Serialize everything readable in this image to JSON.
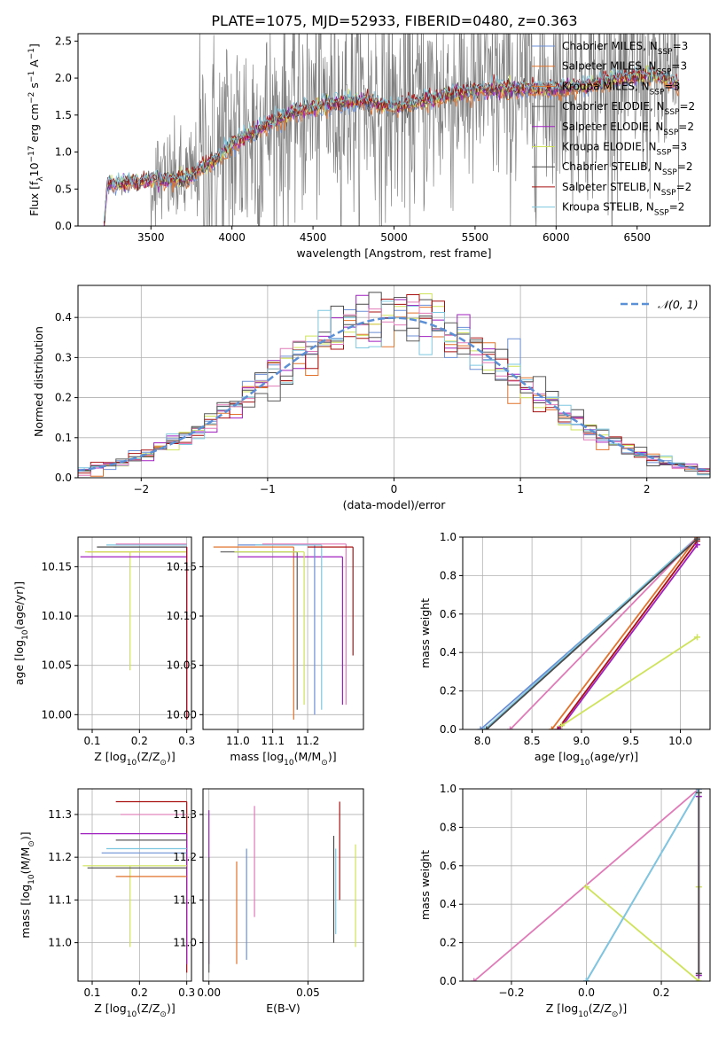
{
  "figure_title": "PLATE=1075, MJD=52933, FIBERID=0480, z=0.363",
  "colors": {
    "chabrier_miles": "#6b8fd6",
    "salpeter_miles": "#e2722b",
    "kroupa_miles": "#e2722b",
    "chabrier_elodie": "#5b5b5b",
    "salpeter_elodie": "#a01fbf",
    "kroupa_elodie": "#cfe35a",
    "chabrier_stelib": "#4a4a4a",
    "salpeter_stelib": "#a81010",
    "kroupa_stelib": "#7ec7e0",
    "pink": "#e07ab8",
    "data": "#808080",
    "gaussian": "#5b8fd6",
    "grid": "#b0b0b0"
  },
  "chart_data": [
    {
      "id": "spectrum",
      "type": "line",
      "xlabel": "wavelength [Angstrom, rest frame]",
      "ylabel": "Flux [f",
      "ylabel_sub": "λ",
      "ylabel_rest": "10",
      "ylabel_exp1": "−17",
      "ylabel_mid": " erg cm",
      "ylabel_exp2": "−2",
      "ylabel_mid2": " s",
      "ylabel_exp3": "−1",
      "ylabel_mid3": " A",
      "ylabel_exp4": "−1",
      "ylabel_end": "]",
      "xlim": [
        3050,
        6950
      ],
      "ylim": [
        0,
        2.6
      ],
      "xticks": [
        "3500",
        "4000",
        "4500",
        "5000",
        "5500",
        "6000",
        "6500"
      ],
      "xtick_values": [
        3500,
        4000,
        4500,
        5000,
        5500,
        6000,
        6500
      ],
      "yticks": [
        "0.0",
        "0.5",
        "1.0",
        "1.5",
        "2.0",
        "2.5"
      ],
      "ytick_values": [
        0,
        0.5,
        1.0,
        1.5,
        2.0,
        2.5
      ],
      "x_range": [
        3210,
        6760
      ],
      "model_anchor_x": [
        3210,
        3230,
        3500,
        3700,
        3900,
        4000,
        4200,
        4400,
        4600,
        4800,
        5000,
        5200,
        5400,
        5600,
        5800,
        6000,
        6200,
        6400,
        6600,
        6760
      ],
      "model_anchor_y": [
        0.0,
        0.55,
        0.62,
        0.62,
        0.9,
        1.1,
        1.35,
        1.55,
        1.65,
        1.7,
        1.6,
        1.7,
        1.8,
        1.85,
        1.85,
        1.85,
        1.9,
        2.0,
        2.05,
        1.9
      ],
      "legend": [
        {
          "label": "Chabrier MILES, N",
          "sub": "SSP",
          "rest": "=3",
          "color_key": "chabrier_miles"
        },
        {
          "label": "Salpeter MILES, N",
          "sub": "SSP",
          "rest": "=3",
          "color_key": "salpeter_miles"
        },
        {
          "label": "Kroupa MILES, N",
          "sub": "SSP",
          "rest": "=3",
          "color_key": "kroupa_miles"
        },
        {
          "label": "Chabrier ELODIE, N",
          "sub": "SSP",
          "rest": "=2",
          "color_key": "chabrier_elodie"
        },
        {
          "label": "Salpeter ELODIE, N",
          "sub": "SSP",
          "rest": "=2",
          "color_key": "salpeter_elodie"
        },
        {
          "label": "Kroupa ELODIE, N",
          "sub": "SSP",
          "rest": "=3",
          "color_key": "kroupa_elodie"
        },
        {
          "label": "Chabrier STELIB, N",
          "sub": "SSP",
          "rest": "=2",
          "color_key": "chabrier_stelib"
        },
        {
          "label": "Salpeter STELIB, N",
          "sub": "SSP",
          "rest": "=2",
          "color_key": "salpeter_stelib"
        },
        {
          "label": "Kroupa STELIB, N",
          "sub": "SSP",
          "rest": "=2",
          "color_key": "kroupa_stelib"
        }
      ]
    },
    {
      "id": "residuals",
      "type": "line",
      "xlabel": "(data-model)/error",
      "ylabel": "Normed distribution",
      "xlim": [
        -2.5,
        2.5
      ],
      "ylim": [
        0,
        0.48
      ],
      "xticks": [
        "−2",
        "−1",
        "0",
        "1",
        "2"
      ],
      "xtick_values": [
        -2,
        -1,
        0,
        1,
        2
      ],
      "yticks": [
        "0.0",
        "0.1",
        "0.2",
        "0.3",
        "0.4"
      ],
      "ytick_values": [
        0,
        0.1,
        0.2,
        0.3,
        0.4
      ],
      "bin_width": 0.1,
      "legend_label": "𝒩(0, 1)"
    },
    {
      "id": "age_vs_Z",
      "type": "line",
      "xlabel": "Z [log",
      "xlabel_sub": "10",
      "xlabel_rest": "(Z/Z",
      "xlabel_sub2": "⊙",
      "xlabel_end": ")]",
      "ylabel": "age  [log",
      "ylabel_sub": "10",
      "ylabel_rest": "(age/yr)]",
      "xlim": [
        0.07,
        0.31
      ],
      "ylim": [
        9.985,
        10.18
      ],
      "xticks": [
        "0.1",
        "0.2",
        "0.3"
      ],
      "xtick_values": [
        0.1,
        0.2,
        0.3
      ],
      "yticks": [
        "10.00",
        "10.05",
        "10.10",
        "10.15"
      ],
      "ytick_values": [
        10.0,
        10.05,
        10.1,
        10.15
      ],
      "segments": [
        {
          "color_key": "chabrier_miles",
          "x": 0.3,
          "y": 10.17,
          "xmin": 0.145,
          "xmax": 0.3,
          "ymin": 10.17,
          "ymax": 10.17
        },
        {
          "color_key": "salpeter_miles",
          "x": 0.3,
          "y": 10.165,
          "xmin": 0.09,
          "xmax": 0.3,
          "ymin": 10.165,
          "ymax": 10.165
        },
        {
          "color_key": "kroupa_elodie",
          "x": 0.18,
          "y": 10.165,
          "xmin": 0.085,
          "xmax": 0.3,
          "ymin": 10.045,
          "ymax": 10.165
        },
        {
          "color_key": "salpeter_elodie",
          "x": 0.3,
          "y": 10.16,
          "xmin": 0.075,
          "xmax": 0.3,
          "ymin": 9.995,
          "ymax": 10.17
        },
        {
          "color_key": "chabrier_stelib",
          "x": 0.3,
          "y": 10.17,
          "xmin": 0.11,
          "xmax": 0.3,
          "ymin": 10.17,
          "ymax": 10.17
        },
        {
          "color_key": "kroupa_stelib",
          "x": 0.3,
          "y": 10.172,
          "xmin": 0.13,
          "xmax": 0.3,
          "ymin": 10.172,
          "ymax": 10.172
        },
        {
          "color_key": "pink",
          "x": 0.3,
          "y": 10.173,
          "xmin": 0.15,
          "xmax": 0.3,
          "ymin": 10.173,
          "ymax": 10.173
        },
        {
          "color_key": "salpeter_stelib",
          "x": 0.3,
          "y": 10.17,
          "xmin": 0.3,
          "xmax": 0.3,
          "ymin": 9.995,
          "ymax": 10.17
        }
      ]
    },
    {
      "id": "age_vs_mass",
      "type": "line",
      "xlabel": "mass [log",
      "xlabel_sub": "10",
      "xlabel_rest": "(M/M",
      "xlabel_sub2": "⊙",
      "xlabel_end": ")]",
      "xlim": [
        10.9,
        11.36
      ],
      "ylim": [
        9.985,
        10.18
      ],
      "xticks": [
        "11.0",
        "11.1",
        "11.2"
      ],
      "xtick_values": [
        11.0,
        11.1,
        11.2
      ],
      "yticks": [
        "10.00",
        "10.05",
        "10.10",
        "10.15"
      ],
      "ytick_values": [
        10.0,
        10.05,
        10.1,
        10.15
      ],
      "segments": [
        {
          "color_key": "salpeter_miles",
          "x": 11.16,
          "y": 10.17,
          "xmin": 10.93,
          "xmax": 11.16,
          "ymin": 9.995,
          "ymax": 10.17
        },
        {
          "color_key": "chabrier_elodie",
          "x": 11.17,
          "y": 10.165,
          "xmin": 10.95,
          "xmax": 11.17,
          "ymin": 10.005,
          "ymax": 10.165
        },
        {
          "color_key": "salpeter_elodie",
          "x": 11.3,
          "y": 10.16,
          "xmin": 11.0,
          "xmax": 11.3,
          "ymin": 10.01,
          "ymax": 10.16
        },
        {
          "color_key": "kroupa_elodie",
          "x": 11.19,
          "y": 10.165,
          "xmin": 10.99,
          "xmax": 11.19,
          "ymin": 10.01,
          "ymax": 10.165
        },
        {
          "color_key": "chabrier_miles",
          "x": 11.22,
          "y": 10.172,
          "xmin": 11.0,
          "xmax": 11.22,
          "ymin": 10.0,
          "ymax": 10.172
        },
        {
          "color_key": "kroupa_stelib",
          "x": 11.24,
          "y": 10.172,
          "xmin": 11.05,
          "xmax": 11.24,
          "ymin": 10.005,
          "ymax": 10.172
        },
        {
          "color_key": "pink",
          "x": 11.31,
          "y": 10.173,
          "xmin": 11.07,
          "xmax": 11.31,
          "ymin": 10.01,
          "ymax": 10.173
        },
        {
          "color_key": "salpeter_stelib",
          "x": 11.33,
          "y": 10.17,
          "xmin": 11.2,
          "xmax": 11.33,
          "ymin": 10.06,
          "ymax": 10.17
        }
      ]
    },
    {
      "id": "cum_age",
      "type": "line",
      "xlabel": "age  [log",
      "xlabel_sub": "10",
      "xlabel_rest": "(age/yr)]",
      "ylabel": "mass weight",
      "xlim": [
        7.8,
        10.3
      ],
      "ylim": [
        0,
        1.0
      ],
      "xticks": [
        "8.0",
        "8.5",
        "9.0",
        "9.5",
        "10.0"
      ],
      "xtick_values": [
        8.0,
        8.5,
        9.0,
        9.5,
        10.0
      ],
      "yticks": [
        "0.0",
        "0.2",
        "0.4",
        "0.6",
        "0.8",
        "1.0"
      ],
      "ytick_values": [
        0,
        0.2,
        0.4,
        0.6,
        0.8,
        1.0
      ],
      "lines": [
        {
          "color_key": "chabrier_miles",
          "x": [
            7.98,
            10.17
          ],
          "y": [
            0.0,
            0.99
          ]
        },
        {
          "color_key": "kroupa_stelib",
          "x": [
            8.02,
            10.17
          ],
          "y": [
            0.0,
            1.0
          ]
        },
        {
          "color_key": "pink",
          "x": [
            8.28,
            10.17
          ],
          "y": [
            0.0,
            1.0
          ]
        },
        {
          "color_key": "salpeter_miles",
          "x": [
            8.7,
            10.17
          ],
          "y": [
            0.0,
            1.0
          ]
        },
        {
          "color_key": "salpeter_stelib",
          "x": [
            8.76,
            10.17
          ],
          "y": [
            0.0,
            0.98
          ]
        },
        {
          "color_key": "salpeter_elodie",
          "x": [
            8.78,
            10.17
          ],
          "y": [
            0.0,
            0.96
          ]
        },
        {
          "color_key": "kroupa_elodie",
          "x": [
            8.8,
            10.17
          ],
          "y": [
            0.02,
            0.48
          ]
        },
        {
          "color_key": "chabrier_stelib",
          "x": [
            8.04,
            10.17
          ],
          "y": [
            0.0,
            0.99
          ]
        }
      ]
    },
    {
      "id": "mass_vs_Z",
      "type": "line",
      "xlabel": "Z [log",
      "xlabel_sub": "10",
      "xlabel_rest": "(Z/Z",
      "xlabel_sub2": "⊙",
      "xlabel_end": ")]",
      "ylabel": "mass [log",
      "ylabel_sub": "10",
      "ylabel_rest": "(M/M",
      "ylabel_sub2": "⊙",
      "ylabel_end": ")]",
      "xlim": [
        0.07,
        0.31
      ],
      "ylim": [
        10.91,
        11.36
      ],
      "xticks": [
        "0.1",
        "0.2",
        "0.3"
      ],
      "xtick_values": [
        0.1,
        0.2,
        0.3
      ],
      "yticks": [
        "11.0",
        "11.1",
        "11.2",
        "11.3"
      ],
      "ytick_values": [
        11.0,
        11.1,
        11.2,
        11.3
      ],
      "segments": [
        {
          "color_key": "salpeter_stelib",
          "x": 0.3,
          "y": 11.33,
          "xmin": 0.15,
          "xmax": 0.3,
          "ymin": 10.93,
          "ymax": 11.33
        },
        {
          "color_key": "pink",
          "x": 0.3,
          "y": 11.3,
          "xmin": 0.16,
          "xmax": 0.3,
          "ymin": 11.3,
          "ymax": 11.3
        },
        {
          "color_key": "salpeter_elodie",
          "x": 0.3,
          "y": 11.255,
          "xmin": 0.075,
          "xmax": 0.3,
          "ymin": 10.95,
          "ymax": 11.255
        },
        {
          "color_key": "chabrier_elodie",
          "x": 0.3,
          "y": 11.24,
          "xmin": 0.15,
          "xmax": 0.3,
          "ymin": 11.24,
          "ymax": 11.24
        },
        {
          "color_key": "kroupa_stelib",
          "x": 0.3,
          "y": 11.22,
          "xmin": 0.13,
          "xmax": 0.3,
          "ymin": 11.22,
          "ymax": 11.22
        },
        {
          "color_key": "chabrier_miles",
          "x": 0.3,
          "y": 11.21,
          "xmin": 0.12,
          "xmax": 0.3,
          "ymin": 11.21,
          "ymax": 11.21
        },
        {
          "color_key": "kroupa_elodie",
          "x": 0.18,
          "y": 11.18,
          "xmin": 0.08,
          "xmax": 0.3,
          "ymin": 10.99,
          "ymax": 11.18
        },
        {
          "color_key": "chabrier_stelib",
          "x": 0.3,
          "y": 11.175,
          "xmin": 0.09,
          "xmax": 0.3,
          "ymin": 11.175,
          "ymax": 11.175
        },
        {
          "color_key": "salpeter_miles",
          "x": 0.3,
          "y": 11.155,
          "xmin": 0.15,
          "xmax": 0.3,
          "ymin": 11.155,
          "ymax": 11.155
        }
      ]
    },
    {
      "id": "mass_vs_EBV",
      "type": "line",
      "xlabel": "E(B-V)",
      "xlim": [
        -0.003,
        0.078
      ],
      "ylim": [
        10.91,
        11.36
      ],
      "xticks": [
        "0.00",
        "0.05"
      ],
      "xtick_values": [
        0.0,
        0.05
      ],
      "yticks": [
        "11.0",
        "11.1",
        "11.2",
        "11.3"
      ],
      "ytick_values": [
        11.0,
        11.1,
        11.2,
        11.3
      ],
      "segments": [
        {
          "color_key": "salpeter_elodie",
          "x": 0.0,
          "ymin": 10.95,
          "ymax": 11.31
        },
        {
          "color_key": "chabrier_elodie",
          "x": 0.0,
          "ymin": 10.93,
          "ymax": 11.2
        },
        {
          "color_key": "salpeter_miles",
          "x": 0.014,
          "ymin": 10.95,
          "ymax": 11.19
        },
        {
          "color_key": "chabrier_miles",
          "x": 0.019,
          "ymin": 10.96,
          "ymax": 11.22
        },
        {
          "color_key": "pink",
          "x": 0.023,
          "ymin": 11.06,
          "ymax": 11.32
        },
        {
          "color_key": "chabrier_stelib",
          "x": 0.063,
          "ymin": 11.0,
          "ymax": 11.25
        },
        {
          "color_key": "kroupa_stelib",
          "x": 0.064,
          "ymin": 11.02,
          "ymax": 11.22
        },
        {
          "color_key": "salpeter_stelib",
          "x": 0.066,
          "ymin": 11.1,
          "ymax": 11.33
        },
        {
          "color_key": "kroupa_elodie",
          "x": 0.074,
          "ymin": 10.99,
          "ymax": 11.23
        }
      ]
    },
    {
      "id": "cum_Z",
      "type": "line",
      "xlabel": "Z [log",
      "xlabel_sub": "10",
      "xlabel_rest": "(Z/Z",
      "xlabel_sub2": "⊙",
      "xlabel_end": ")]",
      "ylabel": "mass weight",
      "xlim": [
        -0.33,
        0.33
      ],
      "ylim": [
        0,
        1.0
      ],
      "xticks": [
        "−0.2",
        "0.0",
        "0.2"
      ],
      "xtick_values": [
        -0.2,
        0.0,
        0.2
      ],
      "yticks": [
        "0.0",
        "0.2",
        "0.4",
        "0.6",
        "0.8",
        "1.0"
      ],
      "ytick_values": [
        0,
        0.2,
        0.4,
        0.6,
        0.8,
        1.0
      ],
      "lines": [
        {
          "color_key": "pink",
          "x": [
            -0.3,
            0.3
          ],
          "y": [
            0.0,
            1.0
          ]
        },
        {
          "color_key": "kroupa_elodie",
          "x": [
            0.0,
            0.3,
            0.3
          ],
          "y": [
            0.49,
            0.0,
            0.49
          ]
        },
        {
          "color_key": "chabrier_miles",
          "x": [
            0.0,
            0.3
          ],
          "y": [
            0.0,
            1.0
          ]
        },
        {
          "color_key": "kroupa_stelib",
          "x": [
            0.0,
            0.3
          ],
          "y": [
            0.0,
            1.0
          ]
        },
        {
          "color_key": "salpeter_elodie",
          "x": [
            0.3,
            0.3
          ],
          "y": [
            0.03,
            0.96
          ]
        },
        {
          "color_key": "chabrier_stelib",
          "x": [
            0.3,
            0.3
          ],
          "y": [
            0.04,
            0.98
          ]
        }
      ]
    }
  ]
}
